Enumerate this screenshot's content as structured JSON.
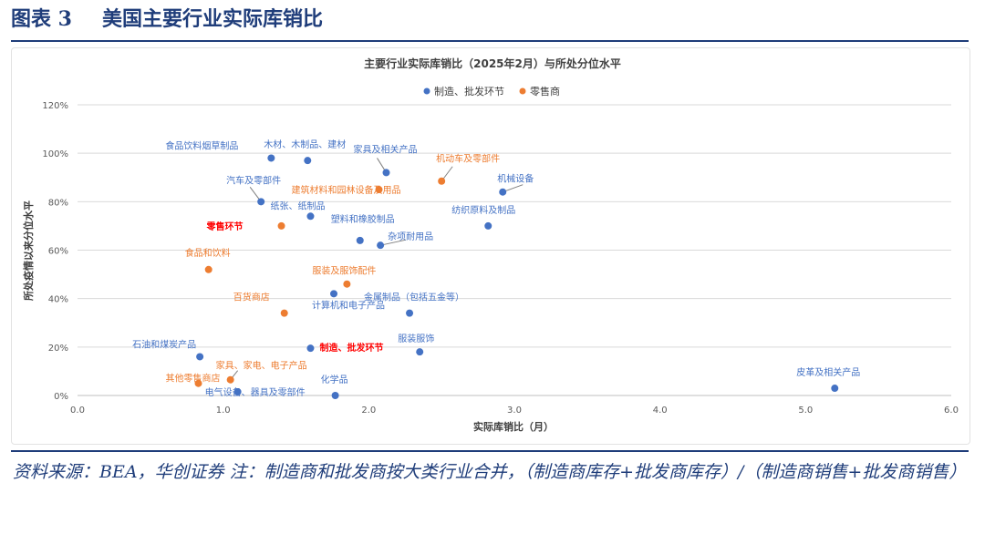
{
  "figure": {
    "number": "图表 3",
    "caption": "美国主要行业实际库销比"
  },
  "source_note": "资料来源：BEA，华创证券   注：制造商和批发商按大类行业合并，（制造商库存+批发商库存）/（制造商销售+批发商销售）",
  "colors": {
    "manufacturing": "#4472c4",
    "retail": "#ed7d31",
    "highlight": "#ff0000",
    "axis_text": "#595959",
    "grid": "#d9d9d9",
    "header": "#1f3d7a"
  },
  "chart_data": {
    "type": "scatter",
    "title": "主要行业实际库销比（2025年2月）与所处分位水平",
    "xlabel": "实际库销比（月）",
    "ylabel": "所处疫情以来分位水平",
    "xlim": [
      0,
      6
    ],
    "ylim": [
      0,
      120
    ],
    "xticks": [
      "0.0",
      "1.0",
      "2.0",
      "3.0",
      "4.0",
      "5.0",
      "6.0"
    ],
    "yticks": [
      "0%",
      "20%",
      "40%",
      "60%",
      "80%",
      "100%",
      "120%"
    ],
    "grid": "horizontal",
    "legend_position": "top-center",
    "series": [
      {
        "name": "制造、批发环节",
        "color": "#4472c4",
        "points": [
          {
            "label": "食品饮料烟草制品",
            "x": 1.33,
            "y": 98
          },
          {
            "label": "木材、木制品、建材",
            "x": 1.58,
            "y": 97
          },
          {
            "label": "家具及相关产品",
            "x": 2.12,
            "y": 92
          },
          {
            "label": "机械设备",
            "x": 2.92,
            "y": 84
          },
          {
            "label": "汽车及零部件",
            "x": 1.26,
            "y": 80
          },
          {
            "label": "纸张、纸制品",
            "x": 1.6,
            "y": 74
          },
          {
            "label": "纺织原料及制品",
            "x": 2.82,
            "y": 70
          },
          {
            "label": "塑料和橡胶制品",
            "x": 1.94,
            "y": 64
          },
          {
            "label": "杂项耐用品",
            "x": 2.08,
            "y": 62
          },
          {
            "label": "计算机和电子产品",
            "x": 1.76,
            "y": 42
          },
          {
            "label": "金属制品（包括五金等）",
            "x": 2.28,
            "y": 34
          },
          {
            "label": "石油和煤炭产品",
            "x": 0.84,
            "y": 16
          },
          {
            "label": "制造、批发环节",
            "x": 1.6,
            "y": 19.5
          },
          {
            "label": "服装服饰",
            "x": 2.35,
            "y": 18
          },
          {
            "label": "电气设备、器具及零部件",
            "x": 1.1,
            "y": 1.5
          },
          {
            "label": "化学品",
            "x": 1.77,
            "y": 0
          },
          {
            "label": "皮革及相关产品",
            "x": 5.2,
            "y": 3
          }
        ]
      },
      {
        "name": "零售商",
        "color": "#ed7d31",
        "points": [
          {
            "label": "机动车及零部件",
            "x": 2.5,
            "y": 88.5
          },
          {
            "label": "建筑材料和园林设备及用品",
            "x": 2.07,
            "y": 85
          },
          {
            "label": "零售环节",
            "x": 1.4,
            "y": 70
          },
          {
            "label": "食品和饮料",
            "x": 0.9,
            "y": 52
          },
          {
            "label": "服装及服饰配件",
            "x": 1.85,
            "y": 46
          },
          {
            "label": "百货商店",
            "x": 1.42,
            "y": 34
          },
          {
            "label": "家具、家电、电子产品",
            "x": 1.05,
            "y": 6.5
          },
          {
            "label": "其他零售商店",
            "x": 0.83,
            "y": 5
          }
        ]
      }
    ]
  }
}
